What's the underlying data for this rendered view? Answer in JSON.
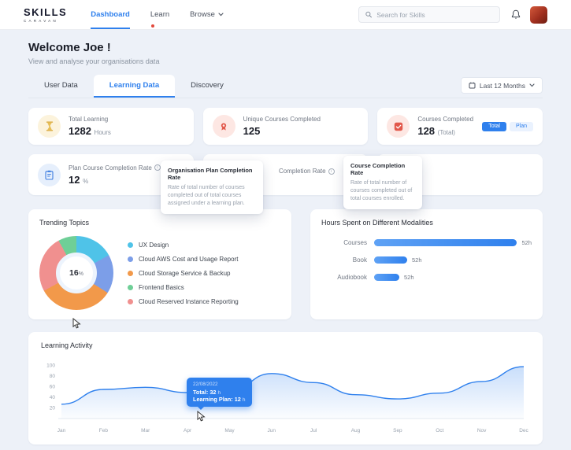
{
  "accent_color": "#2F80ED",
  "nav": {
    "logo_line1": "SKILLS",
    "logo_line2": "CARAVAN",
    "items": [
      {
        "label": "Dashboard"
      },
      {
        "label": "Learn"
      },
      {
        "label": "Browse"
      }
    ],
    "search": {
      "placeholder": "Search for Skills"
    }
  },
  "header": {
    "title": "Welcome Joe !",
    "subtitle": "View and analyse your organisations data"
  },
  "tabs": [
    {
      "label": "User Data"
    },
    {
      "label": "Learning Data"
    },
    {
      "label": "Discovery"
    }
  ],
  "date_filter": {
    "label": "Last 12 Months"
  },
  "stats": {
    "total_learning": {
      "title": "Total Learning",
      "value": "1282",
      "unit": "Hours"
    },
    "unique_courses": {
      "title": "Unique Courses Completed",
      "value": "125"
    },
    "courses_completed": {
      "title": "Courses Completed",
      "value": "128",
      "unit": "(Total)",
      "toggle_total": "Total",
      "toggle_plan": "Plan"
    },
    "plan_completion": {
      "title": "Plan Course Completion Rate",
      "value": "12",
      "unit": "%"
    },
    "org_completion_fragment": "Completion Rate"
  },
  "popovers": {
    "org_plan": {
      "title": "Organisation Plan Completion Rate",
      "body": "Rate of total number of courses completed out of total courses assigned under a learning plan."
    },
    "course": {
      "title": "Course Completion Rate",
      "body": "Rate of total number of courses completed out of total courses enrolled."
    }
  },
  "trending": {
    "title": "Trending Topics",
    "center_value": "16",
    "center_unit": "%",
    "chart": {
      "type": "pie",
      "segment_order": [
        0,
        1,
        2,
        4,
        3
      ],
      "items": [
        {
          "label": "UX Design",
          "color": "#4FC3E8",
          "pct": 17
        },
        {
          "label": "Cloud AWS Cost and Usage Report",
          "color": "#7C9EE8",
          "pct": 17
        },
        {
          "label": "Cloud Storage Service & Backup",
          "color": "#F2994A",
          "pct": 33
        },
        {
          "label": "Frontend Basics",
          "color": "#6FCF97",
          "pct": 8
        },
        {
          "label": "Cloud Reserved Instance Reporting",
          "color": "#F0908F",
          "pct": 25
        }
      ]
    }
  },
  "modalities": {
    "title": "Hours Spent on Different Modalities",
    "chart": {
      "type": "bar",
      "bar_color": "#2F80ED",
      "bars": [
        {
          "label": "Courses",
          "value": "52h",
          "pct": 91
        },
        {
          "label": "Book",
          "value": "52h",
          "pct": 21
        },
        {
          "label": "Audiobook",
          "value": "52h",
          "pct": 16
        }
      ]
    }
  },
  "activity": {
    "title": "Learning Activity",
    "chart_data": {
      "type": "area",
      "x": [
        "Jan",
        "Feb",
        "Mar",
        "Apr",
        "May",
        "Jun",
        "Jul",
        "Aug",
        "Sep",
        "Oct",
        "Nov",
        "Dec"
      ],
      "values": [
        27,
        55,
        59,
        49,
        52,
        85,
        68,
        45,
        37,
        48,
        70,
        98
      ],
      "yticks": [
        20,
        40,
        60,
        80,
        100
      ],
      "ylim": [
        0,
        110
      ],
      "line_color": "#2F80ED"
    },
    "tooltip": {
      "date": "22/08/2022",
      "total_label": "Total:",
      "total_value": "32",
      "total_unit": "h",
      "plan_label": "Learning Plan:",
      "plan_value": "12",
      "plan_unit": "h"
    }
  }
}
